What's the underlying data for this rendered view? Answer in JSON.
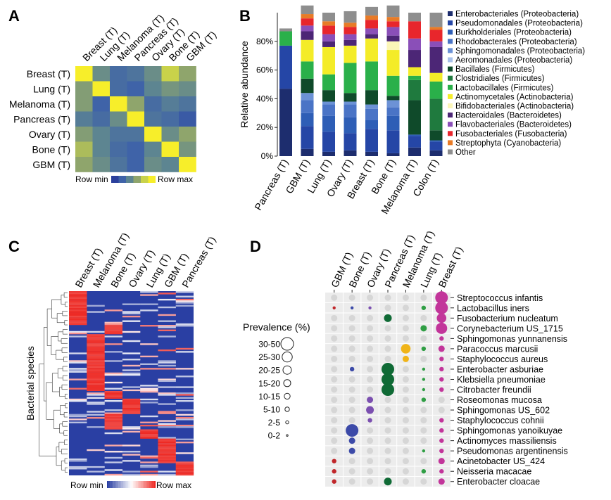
{
  "chart_data": [
    {
      "panel": "A",
      "type": "heatmap",
      "samples": [
        "Breast (T)",
        "Lung (T)",
        "Melanoma (T)",
        "Pancreas (T)",
        "Ovary (T)",
        "Bone (T)",
        "GBM (T)"
      ],
      "matrix": [
        [
          1.0,
          0.45,
          0.25,
          0.3,
          0.45,
          0.8,
          0.6
        ],
        [
          0.55,
          1.0,
          0.25,
          0.2,
          0.4,
          0.5,
          0.45
        ],
        [
          0.55,
          0.2,
          1.0,
          0.6,
          0.25,
          0.35,
          0.3
        ],
        [
          0.35,
          0.25,
          0.45,
          1.0,
          0.3,
          0.25,
          0.15
        ],
        [
          0.55,
          0.4,
          0.3,
          0.3,
          1.0,
          0.45,
          0.6
        ],
        [
          0.7,
          0.4,
          0.25,
          0.2,
          0.4,
          1.0,
          0.5
        ],
        [
          0.6,
          0.45,
          0.3,
          0.2,
          0.45,
          0.4,
          1.0
        ]
      ],
      "legend": {
        "min_label": "Row min",
        "max_label": "Row max"
      },
      "colors": [
        "#2b3f9c",
        "#3f63a8",
        "#5d8591",
        "#8fa56c",
        "#c9d24a",
        "#f7ee2a"
      ]
    },
    {
      "panel": "B",
      "type": "bar",
      "stacked": true,
      "ylabel": "Relative abundance",
      "yticks": [
        "0%",
        "20%",
        "40%",
        "60%",
        "80%"
      ],
      "ylim": [
        0,
        100
      ],
      "categories": [
        "Pancreas (T)",
        "GBM (T)",
        "Lung (T)",
        "Ovary (T)",
        "Breast (T)",
        "Bone (T)",
        "Melanoma (T)",
        "Colon (T)"
      ],
      "series": [
        {
          "name": "Enterobacteriales (Proteobacteria)",
          "color": "#1d2d6e",
          "values": [
            47,
            5,
            3,
            4,
            3,
            2,
            6,
            4
          ]
        },
        {
          "name": "Pseudomonadales (Proteobacteria)",
          "color": "#2546a6",
          "values": [
            30,
            16,
            14,
            12,
            16,
            16,
            8,
            6
          ]
        },
        {
          "name": "Burkholderiales (Proteobacteria)",
          "color": "#2e5eb6",
          "values": [
            0,
            9,
            11,
            11,
            6,
            10,
            1,
            1
          ]
        },
        {
          "name": "Rhodobacterales (Proteobacteria)",
          "color": "#4a74c6",
          "values": [
            0,
            9,
            8,
            9,
            8,
            6,
            0,
            0
          ]
        },
        {
          "name": "Sphingomonadales (Proteobacteria)",
          "color": "#6c92d6",
          "values": [
            0,
            5,
            2,
            2,
            3,
            5,
            0,
            0
          ]
        },
        {
          "name": "Aeromonadales (Proteobacteria)",
          "color": "#a8c1ea",
          "values": [
            0,
            0,
            0,
            0,
            0,
            0,
            0,
            0
          ]
        },
        {
          "name": "Bacillales (Firmicutes)",
          "color": "#0f4a2a",
          "values": [
            0,
            10,
            8,
            6,
            10,
            3,
            24,
            7
          ]
        },
        {
          "name": "Clostridiales (Firmicutes)",
          "color": "#1f7a3e",
          "values": [
            0,
            0,
            0,
            0,
            0,
            0,
            14,
            22
          ]
        },
        {
          "name": "Lactobacillales (Firmicutes)",
          "color": "#2ab04a",
          "values": [
            10,
            12,
            11,
            21,
            20,
            14,
            3,
            12
          ]
        },
        {
          "name": "Actinomycetales (Actinobacteria)",
          "color": "#f4ec28",
          "values": [
            0,
            15,
            19,
            12,
            16,
            18,
            6,
            6
          ]
        },
        {
          "name": "Bifidobacteriales (Actinobacteria)",
          "color": "#fbf6b8",
          "values": [
            0,
            0,
            0,
            0,
            0,
            6,
            0,
            0
          ]
        },
        {
          "name": "Bacteroidales (Bacteroidetes)",
          "color": "#4c2676",
          "values": [
            0,
            6,
            4,
            4,
            3,
            4,
            12,
            18
          ]
        },
        {
          "name": "Flavobacteriales (Bacteroidetes)",
          "color": "#8a4fb8",
          "values": [
            0,
            4,
            5,
            4,
            4,
            6,
            8,
            4
          ]
        },
        {
          "name": "Fusobacteriales (Fusobacteria)",
          "color": "#e8262c",
          "values": [
            0,
            5,
            6,
            5,
            6,
            4,
            12,
            8
          ]
        },
        {
          "name": "Streptophyta (Cyanobacteria)",
          "color": "#e87b27",
          "values": [
            0,
            3,
            3,
            3,
            3,
            3,
            0,
            2
          ]
        },
        {
          "name": "Other",
          "color": "#8e8e8e",
          "values": [
            2,
            6,
            6,
            8,
            6,
            8,
            6,
            10
          ]
        }
      ]
    },
    {
      "panel": "C",
      "type": "heatmap",
      "ylabel": "Bacterial species",
      "samples": [
        "Breast (T)",
        "Melanoma (T)",
        "Bone (T)",
        "Ovary (T)",
        "Lung (T)",
        "GBM (T)",
        "Pancreas (T)"
      ],
      "legend": {
        "min_label": "Row min",
        "max_label": "Row max"
      },
      "colors": [
        "#2a3fa3",
        "#ffffff",
        "#ee2a24"
      ]
    },
    {
      "panel": "D",
      "type": "scatter",
      "title": "Prevalence (%)",
      "samples": [
        "GBM (T)",
        "Bone (T)",
        "Ovary (T)",
        "Pancreas (T)",
        "Melanoma (T)",
        "Lung (T)",
        "Breast (T)"
      ],
      "colors": [
        "#c0262a",
        "#3c4aa8",
        "#7b4fb0",
        "#0f6a35",
        "#f0b418",
        "#2f9e44",
        "#c2359a"
      ],
      "species": [
        "Streptococcus infantis",
        "Lactobacillus iners",
        "Fusobacterium nucleatum",
        "Corynebacterium US_1715",
        "Sphingomonas yunnanensis",
        "Paracoccus marcusii",
        "Staphylococcus aureus",
        "Enterobacter asburiae",
        "Klebsiella pneumoniae",
        "Citrobacter freundii",
        "Roseomonas mucosa",
        "Sphingomonas US_602",
        "Staphylococcus cohnii",
        "Sphingomonas yanoikuyae",
        "Actinomyces massiliensis",
        "Pseudomonas argentinensis",
        "Acinetobacter US_424",
        "Neisseria macacae",
        "Enterobacter cloacae"
      ],
      "legend_bins": [
        "30-50",
        "25-30",
        "20-25",
        "15-20",
        "10-15",
        "5-10",
        "2-5",
        "0-2"
      ],
      "grid": [
        [
          0,
          0,
          0,
          0,
          0,
          0,
          7
        ],
        [
          1,
          1,
          1,
          0,
          0,
          2,
          7
        ],
        [
          0,
          0,
          0,
          4,
          0,
          0,
          5
        ],
        [
          0,
          0,
          0,
          0,
          0,
          3,
          6
        ],
        [
          0,
          0,
          0,
          0,
          0,
          0,
          2
        ],
        [
          0,
          0,
          0,
          0,
          5,
          2,
          3
        ],
        [
          0,
          0,
          0,
          0,
          3,
          0,
          2
        ],
        [
          0,
          2,
          0,
          7,
          0,
          1,
          2
        ],
        [
          0,
          0,
          0,
          7,
          0,
          1,
          2
        ],
        [
          0,
          0,
          0,
          7,
          0,
          1,
          2
        ],
        [
          0,
          0,
          3,
          0,
          0,
          2,
          0
        ],
        [
          0,
          0,
          4,
          0,
          0,
          0,
          0
        ],
        [
          0,
          0,
          2,
          0,
          0,
          0,
          2
        ],
        [
          0,
          7,
          0,
          0,
          0,
          0,
          2
        ],
        [
          0,
          3,
          0,
          0,
          0,
          0,
          2
        ],
        [
          0,
          3,
          0,
          0,
          0,
          1,
          2
        ],
        [
          2,
          0,
          0,
          0,
          0,
          0,
          3
        ],
        [
          2,
          0,
          0,
          0,
          0,
          2,
          2
        ],
        [
          2,
          0,
          0,
          4,
          0,
          0,
          3
        ]
      ]
    }
  ],
  "panel_letters": [
    "A",
    "B",
    "C",
    "D"
  ]
}
